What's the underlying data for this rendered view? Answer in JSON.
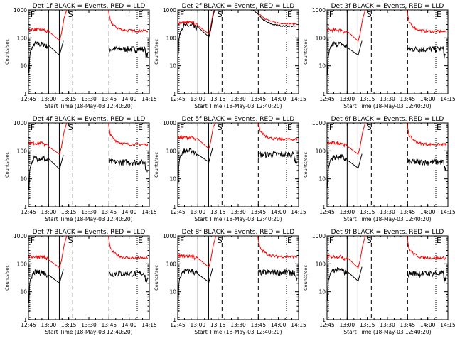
{
  "chart_data": {
    "type": "line",
    "layout": "3x3 panel grid",
    "yscale": "log",
    "ylim": [
      1,
      1000
    ],
    "ytick_labels": [
      "1",
      "10",
      "100",
      "1000"
    ],
    "ylabel": "Counts/sec",
    "xlabel": "Start Time (18-May-03 12:40:20)",
    "xlim": [
      "12:45",
      "14:15"
    ],
    "xtick_labels": [
      "12:45",
      "13:00",
      "13:15",
      "13:30",
      "13:45",
      "14:00",
      "14:15"
    ],
    "colors": {
      "events": "#000000",
      "lld": "#ff0000"
    },
    "markers": {
      "F": "12:46",
      "S": "13:14",
      "E": "14:06"
    },
    "event_lines": {
      "solid": [
        "13:00",
        "13:08"
      ],
      "dashed": [
        "13:18",
        "13:45"
      ],
      "dotted": [
        "12:46",
        "14:06"
      ]
    },
    "panels": [
      {
        "title": "Det 1f BLACK = Events, RED = LLD",
        "pre_black": 60,
        "post_black": 40,
        "pre_red": 200,
        "post_red": 180,
        "tall_peak": false
      },
      {
        "title": "Det 2f BLACK = Events, RED = LLD",
        "pre_black": 270,
        "post_black": 260,
        "pre_red": 350,
        "post_red": 320,
        "tall_peak": true
      },
      {
        "title": "Det 3f BLACK = Events, RED = LLD",
        "pre_black": 60,
        "post_black": 40,
        "pre_red": 190,
        "post_red": 170,
        "tall_peak": false
      },
      {
        "title": "Det 4f BLACK = Events, RED = LLD",
        "pre_black": 55,
        "post_black": 40,
        "pre_red": 190,
        "post_red": 170,
        "tall_peak": false
      },
      {
        "title": "Det 5f BLACK = Events, RED = LLD",
        "pre_black": 100,
        "post_black": 75,
        "pre_red": 300,
        "post_red": 260,
        "tall_peak": false
      },
      {
        "title": "Det 6f BLACK = Events, RED = LLD",
        "pre_black": 60,
        "post_black": 40,
        "pre_red": 190,
        "post_red": 170,
        "tall_peak": false
      },
      {
        "title": "Det 7f BLACK = Events, RED = LLD",
        "pre_black": 50,
        "post_black": 45,
        "pre_red": 180,
        "post_red": 160,
        "tall_peak": false
      },
      {
        "title": "Det 8f BLACK = Events, RED = LLD",
        "pre_black": 55,
        "post_black": 50,
        "pre_red": 190,
        "post_red": 180,
        "tall_peak": false
      },
      {
        "title": "Det 9f BLACK = Events, RED = LLD",
        "pre_black": 60,
        "post_black": 45,
        "pre_red": 180,
        "post_red": 160,
        "tall_peak": false
      }
    ]
  }
}
